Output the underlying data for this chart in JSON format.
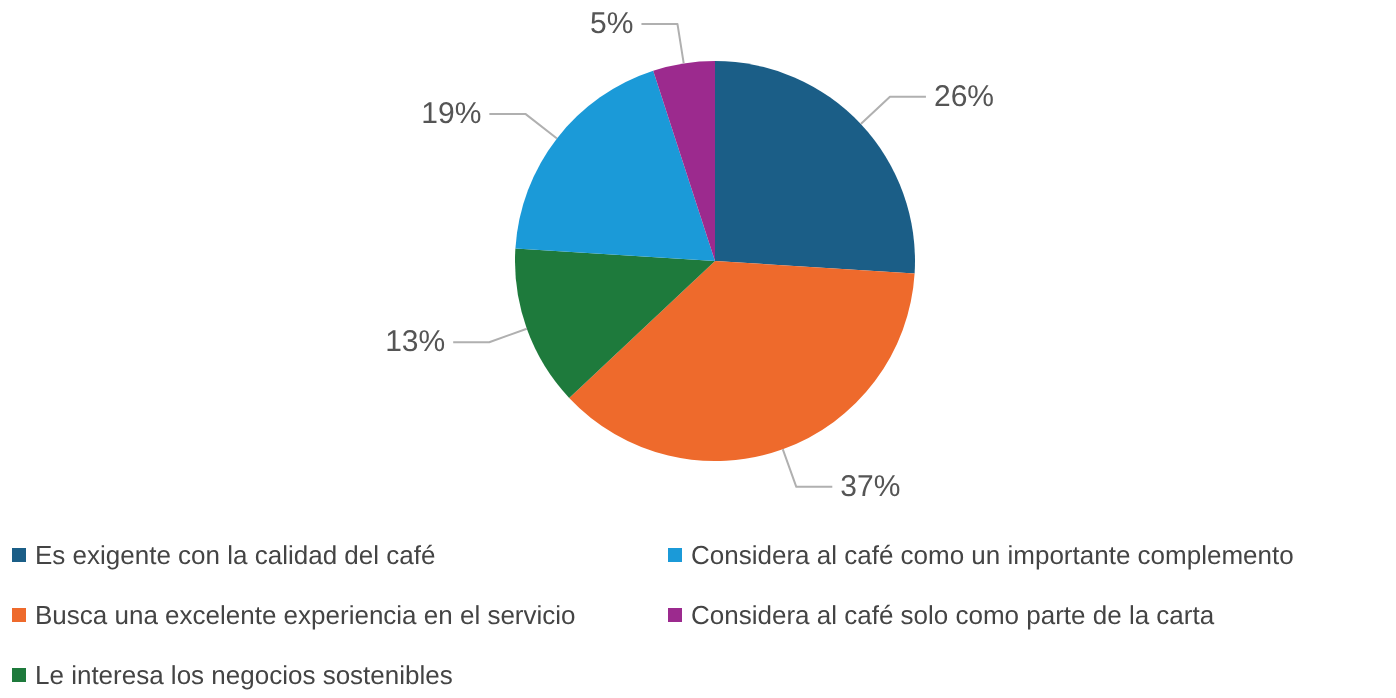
{
  "chart_data": {
    "type": "pie",
    "categories": [
      "Es exigente con la calidad del café",
      "Busca una excelente experiencia en el servicio",
      "Le interesa los negocios sostenibles",
      "Considera al café como un importante complemento",
      "Considera al café solo como parte de la carta"
    ],
    "values": [
      26,
      37,
      13,
      19,
      5
    ],
    "value_labels": [
      "26%",
      "37%",
      "13%",
      "19%",
      "5%"
    ],
    "colors": [
      "#1b5e87",
      "#ee6a2c",
      "#1e7a3c",
      "#1b9ad8",
      "#9c2a8e"
    ],
    "legend": "bottom"
  }
}
